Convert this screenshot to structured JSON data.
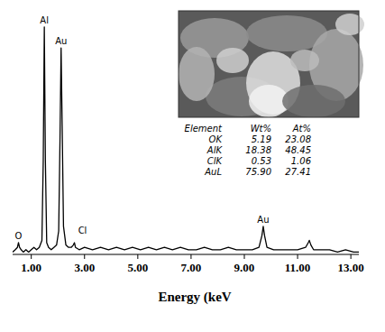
{
  "chart_data": {
    "type": "line",
    "x_label": "Energy (keV",
    "x": [
      0.3,
      0.4,
      0.48,
      0.52,
      0.56,
      0.62,
      0.7,
      0.8,
      0.9,
      1.0,
      1.1,
      1.2,
      1.3,
      1.4,
      1.45,
      1.49,
      1.53,
      1.58,
      1.65,
      1.75,
      1.85,
      1.95,
      2.03,
      2.08,
      2.12,
      2.16,
      2.21,
      2.3,
      2.4,
      2.5,
      2.58,
      2.62,
      2.66,
      2.8,
      3.0,
      3.3,
      3.6,
      3.9,
      4.2,
      4.5,
      4.8,
      5.1,
      5.4,
      5.7,
      6.0,
      6.3,
      6.6,
      6.9,
      7.2,
      7.5,
      7.8,
      8.1,
      8.4,
      8.7,
      9.0,
      9.3,
      9.55,
      9.66,
      9.71,
      9.76,
      9.85,
      10.1,
      10.4,
      10.7,
      11.0,
      11.3,
      11.4,
      11.44,
      11.5,
      11.6,
      11.9,
      12.2,
      12.5,
      12.8,
      13.1,
      13.3
    ],
    "values": [
      1,
      2,
      3,
      5,
      3,
      2,
      1,
      2,
      1,
      2,
      3,
      2,
      3,
      6,
      40,
      97,
      40,
      5,
      3,
      2,
      3,
      4,
      10,
      50,
      88,
      55,
      12,
      4,
      3,
      3,
      4,
      5,
      3,
      2,
      3,
      2,
      3,
      2,
      3,
      2,
      3,
      2,
      3,
      2,
      3,
      2,
      3,
      2,
      2,
      3,
      2,
      2,
      3,
      2,
      2,
      2,
      3,
      8,
      12,
      8,
      3,
      2,
      2,
      2,
      2,
      3,
      5,
      6,
      4,
      2,
      2,
      2,
      1,
      2,
      1,
      1
    ],
    "color": "#000000",
    "xlim": [
      0.3,
      13.3
    ],
    "xticks": [
      {
        "value": 1,
        "label": "1.00"
      },
      {
        "value": 3,
        "label": "3.00"
      },
      {
        "value": 5,
        "label": "5.00"
      },
      {
        "value": 7,
        "label": "7.00"
      },
      {
        "value": 9,
        "label": "9.00"
      },
      {
        "value": 11,
        "label": "11.00"
      },
      {
        "value": 13,
        "label": "13.00"
      }
    ],
    "ylim": [
      0,
      100
    ],
    "tick_labels": "x",
    "grid": false,
    "annotations": [
      {
        "text": "O",
        "x": 0.52,
        "y": 5
      },
      {
        "text": "Al",
        "x": 1.49,
        "y": 97
      },
      {
        "text": "Au",
        "x": 2.12,
        "y": 88
      },
      {
        "text": "Cl",
        "x": 2.62,
        "y": 5
      },
      {
        "text": "Au",
        "x": 9.71,
        "y": 12
      }
    ],
    "inset_table": {
      "columns": [
        "Element",
        "Wt%",
        "At%"
      ],
      "rows": [
        [
          "OK",
          "5.19",
          "23.08"
        ],
        [
          "AlK",
          "18.38",
          "48.45"
        ],
        [
          "ClK",
          "0.53",
          "1.06"
        ],
        [
          "AuL",
          "75.90",
          "27.41"
        ]
      ]
    }
  }
}
